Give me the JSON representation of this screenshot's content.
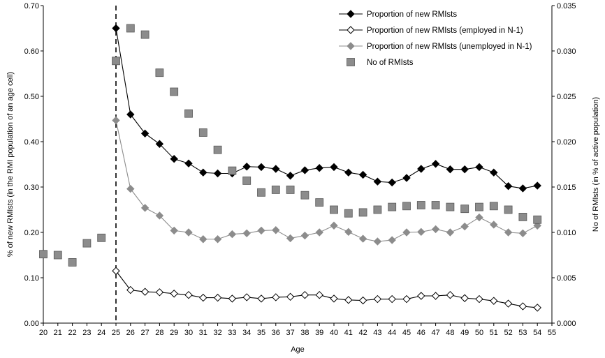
{
  "chart_data": {
    "type": "line",
    "xlabel": "Age",
    "ylabel_left": "% of new RMIsts (in the RMI population of an age cell)",
    "ylabel_right": "No of RMIsts (in % of active population)",
    "x": [
      20,
      21,
      22,
      23,
      24,
      25,
      26,
      27,
      28,
      29,
      30,
      31,
      32,
      33,
      34,
      35,
      36,
      37,
      38,
      39,
      40,
      41,
      42,
      43,
      44,
      45,
      46,
      47,
      48,
      49,
      50,
      51,
      52,
      53,
      54
    ],
    "x_ticks": [
      "20",
      "21",
      "22",
      "23",
      "24",
      "25",
      "26",
      "27",
      "28",
      "29",
      "30",
      "31",
      "32",
      "33",
      "34",
      "35",
      "36",
      "37",
      "38",
      "39",
      "40",
      "41",
      "42",
      "43",
      "44",
      "45",
      "46",
      "47",
      "48",
      "49",
      "50",
      "51",
      "52",
      "53",
      "54",
      "55"
    ],
    "xlim": [
      20,
      55
    ],
    "y_left_ticks": [
      "0.00",
      "0.10",
      "0.20",
      "0.30",
      "0.40",
      "0.50",
      "0.60",
      "0.70"
    ],
    "ylim_left": [
      0,
      0.7
    ],
    "y_right_ticks": [
      "0.000",
      "0.005",
      "0.010",
      "0.015",
      "0.020",
      "0.025",
      "0.030",
      "0.035"
    ],
    "ylim_right": [
      0,
      0.035
    ],
    "vline_x": 25,
    "legend_position": "top-right",
    "series": [
      {
        "name": "Proportion of new RMIsts",
        "axis": "left",
        "marker": "diamond-filled",
        "color": "#000000",
        "x": [
          25,
          26,
          27,
          28,
          29,
          30,
          31,
          32,
          33,
          34,
          35,
          36,
          37,
          38,
          39,
          40,
          41,
          42,
          43,
          44,
          45,
          46,
          47,
          48,
          49,
          50,
          51,
          52,
          53,
          54
        ],
        "values": [
          0.65,
          0.46,
          0.418,
          0.395,
          0.362,
          0.352,
          0.332,
          0.33,
          0.33,
          0.345,
          0.344,
          0.34,
          0.325,
          0.337,
          0.342,
          0.344,
          0.332,
          0.327,
          0.312,
          0.31,
          0.32,
          0.34,
          0.351,
          0.339,
          0.339,
          0.344,
          0.332,
          0.302,
          0.297,
          0.303
        ]
      },
      {
        "name": "Proportion of new RMIsts (employed in N-1)",
        "axis": "left",
        "marker": "diamond-open",
        "color": "#000000",
        "x": [
          25,
          26,
          27,
          28,
          29,
          30,
          31,
          32,
          33,
          34,
          35,
          36,
          37,
          38,
          39,
          40,
          41,
          42,
          43,
          44,
          45,
          46,
          47,
          48,
          49,
          50,
          51,
          52,
          53,
          54
        ],
        "values": [
          0.115,
          0.073,
          0.069,
          0.068,
          0.065,
          0.062,
          0.056,
          0.056,
          0.054,
          0.057,
          0.054,
          0.057,
          0.058,
          0.062,
          0.062,
          0.054,
          0.051,
          0.05,
          0.053,
          0.053,
          0.053,
          0.06,
          0.06,
          0.062,
          0.055,
          0.053,
          0.049,
          0.043,
          0.037,
          0.034
        ]
      },
      {
        "name": "Proportion of new RMIsts (unemployed in N-1)",
        "axis": "left",
        "marker": "diamond-gray",
        "color": "#8c8c8c",
        "x": [
          25,
          26,
          27,
          28,
          29,
          30,
          31,
          32,
          33,
          34,
          35,
          36,
          37,
          38,
          39,
          40,
          41,
          42,
          43,
          44,
          45,
          46,
          47,
          48,
          49,
          50,
          51,
          52,
          53,
          54
        ],
        "values": [
          0.447,
          0.296,
          0.254,
          0.237,
          0.204,
          0.2,
          0.185,
          0.185,
          0.196,
          0.198,
          0.204,
          0.205,
          0.187,
          0.193,
          0.2,
          0.215,
          0.201,
          0.186,
          0.18,
          0.183,
          0.2,
          0.201,
          0.207,
          0.2,
          0.213,
          0.233,
          0.217,
          0.2,
          0.198,
          0.215
        ]
      },
      {
        "name": "No of RMIsts",
        "axis": "right",
        "marker": "square",
        "color": "#7f7f7f",
        "x": [
          20,
          21,
          22,
          23,
          24,
          25,
          26,
          27,
          28,
          29,
          30,
          31,
          32,
          33,
          34,
          35,
          36,
          37,
          38,
          39,
          40,
          41,
          42,
          43,
          44,
          45,
          46,
          47,
          48,
          49,
          50,
          51,
          52,
          53,
          54
        ],
        "values": [
          0.0076,
          0.0075,
          0.0067,
          0.0088,
          0.0094,
          0.0289,
          0.0325,
          0.0318,
          0.0276,
          0.0255,
          0.0231,
          0.021,
          0.0191,
          0.0168,
          0.0157,
          0.0144,
          0.0147,
          0.0147,
          0.0141,
          0.0133,
          0.0125,
          0.0121,
          0.0122,
          0.0125,
          0.0128,
          0.0129,
          0.013,
          0.013,
          0.0128,
          0.0126,
          0.0128,
          0.0129,
          0.0125,
          0.0117,
          0.0114
        ]
      }
    ]
  }
}
